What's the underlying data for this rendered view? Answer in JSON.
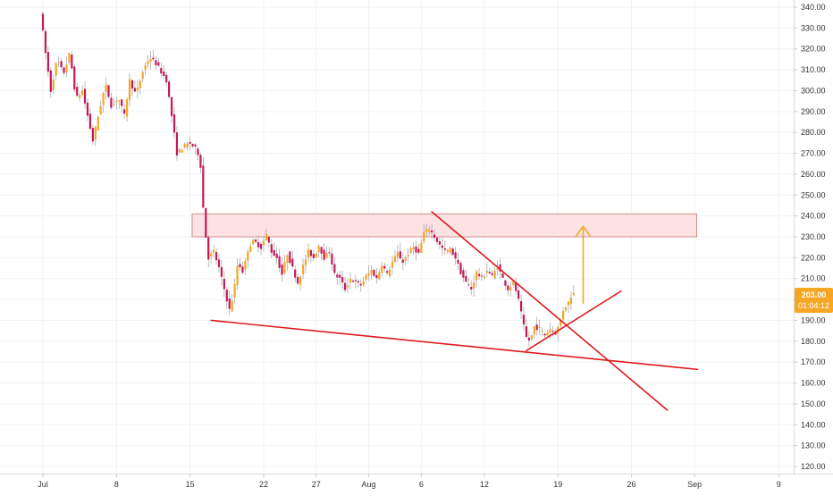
{
  "colors": {
    "up": "#F5A623",
    "down": "#C2185B",
    "wick": "#9e9e9e",
    "grid": "#f0f3f6",
    "axis_text": "#333333",
    "trend": "#E01B1B",
    "zone_fill": "#FDE2E4",
    "zone_stroke": "#D38B8B",
    "arrow": "#F5A623",
    "price_tag_bg": "#F5A623",
    "price_tag_text": "#ffffff"
  },
  "price_tag": {
    "price": "203.00",
    "countdown": "01:04:12"
  },
  "chart_data": {
    "type": "candlestick",
    "ylim": [
      118,
      345
    ],
    "y_ticks": [
      "120.00",
      "130.00",
      "140.00",
      "150.00",
      "160.00",
      "170.00",
      "180.00",
      "190.00",
      "200.00",
      "210.00",
      "220.00",
      "230.00",
      "240.00",
      "250.00",
      "260.00",
      "270.00",
      "280.00",
      "290.00",
      "300.00",
      "310.00",
      "320.00",
      "330.00",
      "340.00"
    ],
    "x_ticks": [
      {
        "label": "Jul",
        "day": 1
      },
      {
        "label": "8",
        "day": 8
      },
      {
        "label": "15",
        "day": 15
      },
      {
        "label": "22",
        "day": 22
      },
      {
        "label": "27",
        "day": 27
      },
      {
        "label": "Aug",
        "day": 32
      },
      {
        "label": "6",
        "day": 37
      },
      {
        "label": "12",
        "day": 43
      },
      {
        "label": "19",
        "day": 50
      },
      {
        "label": "26",
        "day": 57
      },
      {
        "label": "Sep",
        "day": 63
      },
      {
        "label": "9",
        "day": 71
      }
    ],
    "keypoints": [
      [
        0.0,
        338
      ],
      [
        0.5,
        318
      ],
      [
        1.0,
        300
      ],
      [
        1.6,
        315
      ],
      [
        2.2,
        308
      ],
      [
        2.8,
        318
      ],
      [
        3.4,
        296
      ],
      [
        4.0,
        300
      ],
      [
        4.5,
        288
      ],
      [
        5.0,
        276
      ],
      [
        5.6,
        290
      ],
      [
        6.2,
        303
      ],
      [
        6.8,
        292
      ],
      [
        7.4,
        297
      ],
      [
        8.0,
        288
      ],
      [
        8.5,
        305
      ],
      [
        9.1,
        298
      ],
      [
        9.8,
        310
      ],
      [
        10.4,
        316
      ],
      [
        11.0,
        313
      ],
      [
        11.5,
        309
      ],
      [
        12.0,
        305
      ],
      [
        12.5,
        288
      ],
      [
        13.0,
        270
      ],
      [
        13.6,
        273
      ],
      [
        14.2,
        275
      ],
      [
        14.8,
        272
      ],
      [
        15.2,
        268
      ],
      [
        15.6,
        236
      ],
      [
        16.0,
        220
      ],
      [
        16.5,
        223
      ],
      [
        17.0,
        215
      ],
      [
        17.5,
        205
      ],
      [
        18.0,
        195
      ],
      [
        18.4,
        203
      ],
      [
        18.8,
        218
      ],
      [
        19.3,
        213
      ],
      [
        19.8,
        225
      ],
      [
        20.3,
        228
      ],
      [
        21.0,
        225
      ],
      [
        21.5,
        231
      ],
      [
        22.0,
        223
      ],
      [
        22.5,
        220
      ],
      [
        23.0,
        212
      ],
      [
        23.5,
        222
      ],
      [
        24.0,
        215
      ],
      [
        24.5,
        208
      ],
      [
        25.0,
        216
      ],
      [
        25.5,
        223
      ],
      [
        26.0,
        220
      ],
      [
        26.5,
        226
      ],
      [
        27.0,
        220
      ],
      [
        27.5,
        223
      ],
      [
        28.0,
        212
      ],
      [
        28.5,
        210
      ],
      [
        29.0,
        205
      ],
      [
        29.5,
        210
      ],
      [
        30.0,
        208
      ],
      [
        30.5,
        207
      ],
      [
        31.0,
        211
      ],
      [
        31.5,
        214
      ],
      [
        32.0,
        210
      ],
      [
        32.5,
        217
      ],
      [
        33.0,
        212
      ],
      [
        33.5,
        218
      ],
      [
        34.0,
        222
      ],
      [
        34.5,
        218
      ],
      [
        35.0,
        222
      ],
      [
        35.5,
        225
      ],
      [
        36.0,
        222
      ],
      [
        36.5,
        232
      ],
      [
        37.0,
        234
      ],
      [
        37.5,
        230
      ],
      [
        38.0,
        226
      ],
      [
        38.5,
        223
      ],
      [
        39.0,
        224
      ],
      [
        39.5,
        220
      ],
      [
        40.0,
        213
      ],
      [
        40.5,
        208
      ],
      [
        41.0,
        205
      ],
      [
        41.5,
        213
      ],
      [
        42.0,
        210
      ],
      [
        42.5,
        214
      ],
      [
        43.0,
        211
      ],
      [
        43.5,
        216
      ],
      [
        44.0,
        210
      ],
      [
        44.5,
        205
      ],
      [
        45.0,
        208
      ],
      [
        45.4,
        202
      ],
      [
        45.8,
        192
      ],
      [
        46.2,
        182
      ],
      [
        46.6,
        180
      ],
      [
        47.0,
        187
      ],
      [
        47.5,
        186
      ],
      [
        48.0,
        183
      ],
      [
        48.5,
        186
      ],
      [
        49.0,
        184
      ],
      [
        49.4,
        188
      ],
      [
        49.8,
        196
      ],
      [
        50.2,
        198
      ],
      [
        50.6,
        203
      ]
    ],
    "annotations": {
      "resistance_zone": {
        "day_start": 15.2,
        "day_end": 63.2,
        "price_low": 230,
        "price_high": 241
      },
      "lines": [
        {
          "name": "lower-support-line",
          "from": [
            16.0,
            190.0
          ],
          "to": [
            62.3,
            166.5
          ]
        },
        {
          "name": "descending-trendline",
          "from": [
            37.0,
            242.0
          ],
          "to": [
            59.4,
            147.0
          ]
        },
        {
          "name": "ascending-trendline",
          "from": [
            46.0,
            175.5
          ],
          "to": [
            55.0,
            204.0
          ]
        }
      ],
      "up_arrow": {
        "day": 51.4,
        "price_from": 198,
        "price_to": 235
      }
    }
  }
}
